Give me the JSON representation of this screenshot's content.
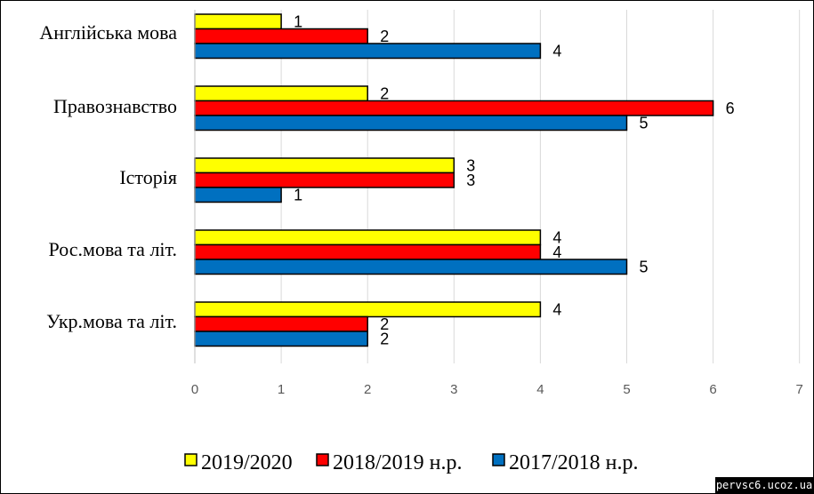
{
  "chart_data": {
    "type": "bar",
    "orientation": "horizontal",
    "categories": [
      "Англійська  мова",
      "Правознавство",
      "Історія",
      "Рос.мова та літ.",
      "Укр.мова та літ."
    ],
    "series": [
      {
        "name": "2019/2020",
        "color": "#ffff00",
        "values": [
          1,
          2,
          3,
          4,
          4
        ]
      },
      {
        "name": "2018/2019  н.р.",
        "color": "#ff0000",
        "values": [
          2,
          6,
          3,
          4,
          2
        ]
      },
      {
        "name": "2017/2018  н.р.",
        "color": "#0070c0",
        "values": [
          4,
          5,
          1,
          5,
          2
        ]
      }
    ],
    "xlim": [
      0,
      7
    ],
    "x_ticks": [
      "0",
      "1",
      "2",
      "3",
      "4",
      "5",
      "6",
      "7"
    ],
    "grid": true,
    "legend_position": "bottom"
  },
  "watermark": "pervsc6.ucoz.ua"
}
